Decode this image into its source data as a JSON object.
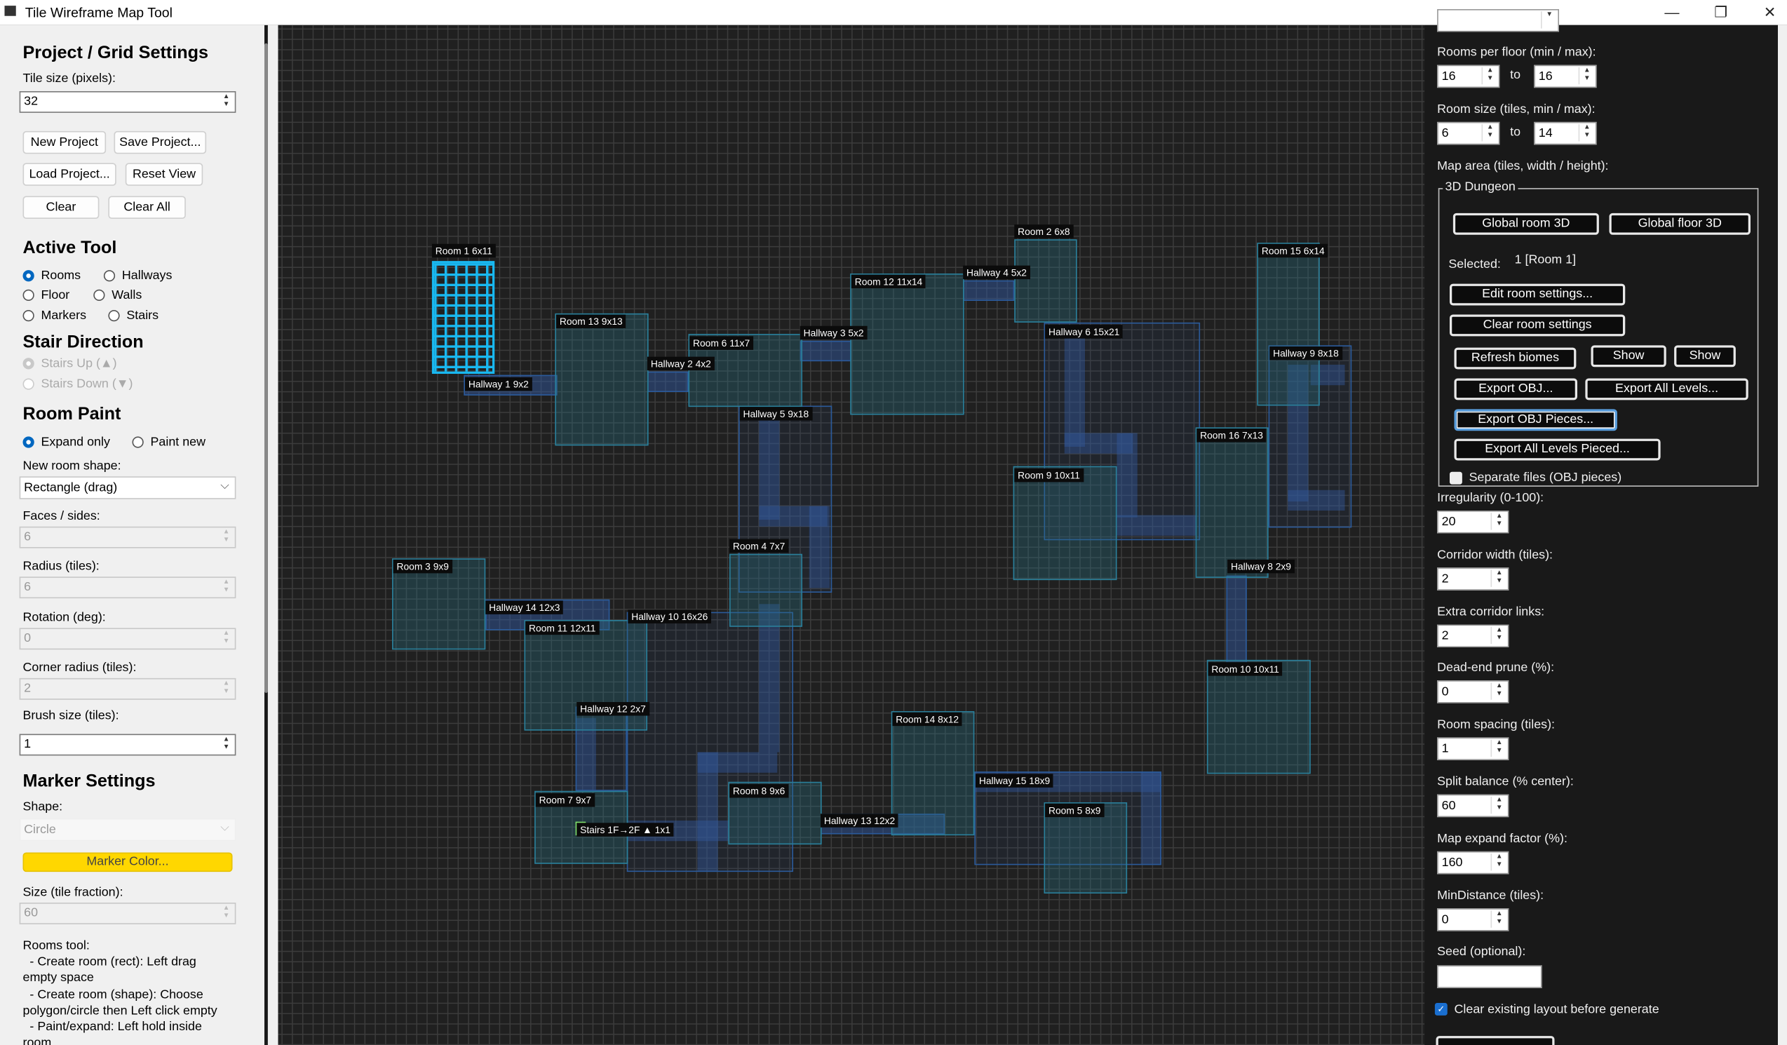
{
  "window": {
    "title": "Tile Wireframe Map Tool",
    "minimize": "—",
    "restore": "❐",
    "close": "✕"
  },
  "left": {
    "project_heading": "Project / Grid Settings",
    "tile_size_label": "Tile size (pixels):",
    "tile_size_value": "32",
    "buttons": {
      "new_project": "New Project",
      "save_project": "Save Project...",
      "load_project": "Load Project...",
      "reset_view": "Reset View",
      "clear": "Clear",
      "clear_all": "Clear All"
    },
    "active_tool_heading": "Active Tool",
    "tools": [
      {
        "label": "Rooms",
        "checked": true
      },
      {
        "label": "Hallways",
        "checked": false
      },
      {
        "label": "Floor",
        "checked": false
      },
      {
        "label": "Walls",
        "checked": false
      },
      {
        "label": "Markers",
        "checked": false
      },
      {
        "label": "Stairs",
        "checked": false
      }
    ],
    "stair_heading": "Stair Direction",
    "stairs_up": "Stairs Up (▲)",
    "stairs_down": "Stairs Down (▼)",
    "room_paint_heading": "Room Paint",
    "expand_only": "Expand only",
    "paint_new": "Paint new",
    "new_room_shape_label": "New room shape:",
    "new_room_shape_value": "Rectangle (drag)",
    "faces_label": "Faces / sides:",
    "faces_value": "6",
    "radius_label": "Radius (tiles):",
    "radius_value": "6",
    "rotation_label": "Rotation (deg):",
    "rotation_value": "0",
    "corner_label": "Corner radius (tiles):",
    "corner_value": "2",
    "brush_label": "Brush size (tiles):",
    "brush_value": "1",
    "marker_heading": "Marker Settings",
    "shape_label": "Shape:",
    "shape_value": "Circle",
    "marker_color_button": "Marker Color...",
    "marker_color": "#ffd700",
    "size_label": "Size (tile fraction):",
    "size_value": "60",
    "help": [
      "Rooms tool:",
      "  - Create room (rect): Left drag",
      "empty space",
      "  - Create room (shape): Choose",
      "polygon/circle then Left click empty",
      "  - Paint/expand: Left hold inside",
      "room"
    ]
  },
  "map": {
    "rooms": [
      "Room 1 6x11",
      "Room 2 6x8",
      "Room 3 9x9",
      "Room 4 7x7",
      "Room 5 8x9",
      "Room 6 11x7",
      "Room 7 9x7",
      "Room 8 9x6",
      "Room 9 10x11",
      "Room 10 10x11",
      "Room 11 12x11",
      "Room 12 11x14",
      "Room 13 9x13",
      "Room 14 8x12",
      "Room 15 6x14",
      "Room 16 7x13"
    ],
    "hallways": [
      "Hallway 1 9x2",
      "Hallway 2 4x2",
      "Hallway 3 5x2",
      "Hallway 4 5x2",
      "Hallway 5 9x18",
      "Hallway 6 15x21",
      "Hallway 8 2x9",
      "Hallway 9 8x18",
      "Hallway 10 16x26",
      "Hallway 12 2x7",
      "Hallway 13 12x2",
      "Hallway 14 12x3",
      "Hallway 15 18x9"
    ],
    "stairs": "Stairs 1F→2F ▲ 1x1",
    "selected_room": "Room 1 6x11",
    "colors": {
      "room": "#2a7f9a",
      "selected": "#19b8f0",
      "hallway": "#2b5a9a",
      "stairs": "#7ddc6a"
    }
  },
  "right": {
    "rooms_per_floor_label": "Rooms per floor (min / max):",
    "rooms_min": "16",
    "rooms_max": "16",
    "to": "to",
    "room_size_label": "Room size (tiles, min / max):",
    "size_min": "6",
    "size_max": "14",
    "map_area_label": "Map area (tiles, width / height):",
    "group_title": "3D Dungeon",
    "global_room": "Global room 3D",
    "global_floor": "Global floor 3D",
    "selected_label": "Selected:",
    "selected_value": "1  [Room 1]",
    "edit_room": "Edit room settings...",
    "clear_room": "Clear room settings",
    "refresh_biomes": "Refresh biomes",
    "show1": "Show",
    "show2": "Show",
    "export_obj": "Export OBJ...",
    "export_all": "Export All Levels...",
    "export_pieces": "Export OBJ Pieces...",
    "export_all_pieced": "Export All Levels Pieced...",
    "separate_files": "Separate files (OBJ pieces)",
    "separate_checked": false,
    "fields": [
      {
        "label": "Irregularity (0-100):",
        "value": "20"
      },
      {
        "label": "Corridor width (tiles):",
        "value": "2"
      },
      {
        "label": "Extra corridor links:",
        "value": "2"
      },
      {
        "label": "Dead-end prune (%):",
        "value": "0"
      },
      {
        "label": "Room spacing (tiles):",
        "value": "1"
      },
      {
        "label": "Split balance (% center):",
        "value": "60"
      },
      {
        "label": "Map expand factor (%):",
        "value": "160"
      },
      {
        "label": "MinDistance (tiles):",
        "value": "0"
      }
    ],
    "seed_label": "Seed (optional):",
    "seed_value": "",
    "clear_existing": "Clear existing layout before generate",
    "clear_existing_checked": true
  }
}
